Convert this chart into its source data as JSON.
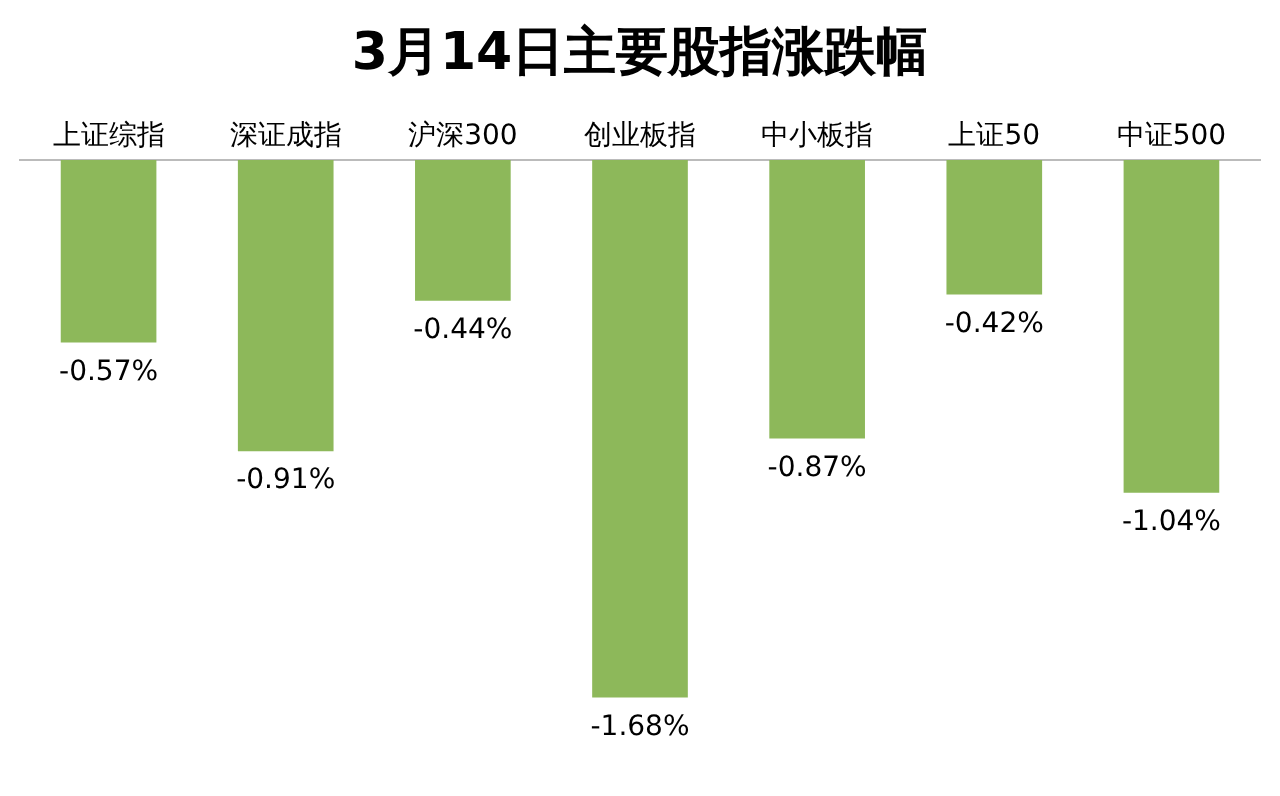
{
  "chart_data": {
    "type": "bar",
    "title": "3月14日主要股指涨跌幅",
    "categories": [
      "上证综指",
      "深证成指",
      "沪深300",
      "创业板指",
      "中小板指",
      "上证50",
      "中证500"
    ],
    "values": [
      -0.57,
      -0.91,
      -0.44,
      -1.68,
      -0.87,
      -0.42,
      -1.04
    ],
    "value_labels": [
      "-0.57%",
      "-0.91%",
      "-0.44%",
      "-1.68%",
      "-0.87%",
      "-0.42%",
      "-1.04%"
    ],
    "color": "#8db85a",
    "grid": false,
    "legend": false
  }
}
